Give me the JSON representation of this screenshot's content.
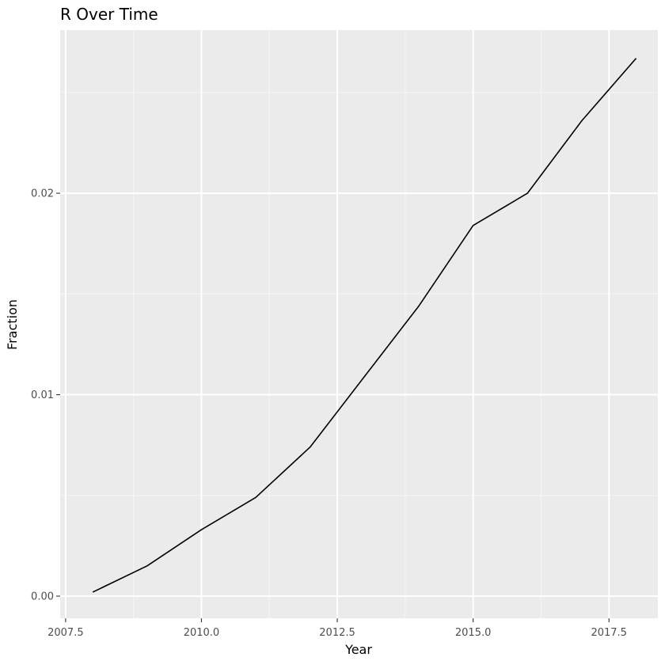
{
  "chart_data": {
    "type": "line",
    "title": "R Over Time",
    "xlabel": "Year",
    "ylabel": "Fraction",
    "xlim": [
      2007.4,
      2018.4
    ],
    "ylim": [
      -0.0011,
      0.0281
    ],
    "x_ticks": [
      2007.5,
      2010.0,
      2012.5,
      2015.0,
      2017.5
    ],
    "x_tick_labels": [
      "2007.5",
      "2010.0",
      "2012.5",
      "2015.0",
      "2017.5"
    ],
    "y_ticks": [
      0.0,
      0.01,
      0.02
    ],
    "y_tick_labels": [
      "0.00",
      "0.01",
      "0.02"
    ],
    "grid": true,
    "legend": "none",
    "series": [
      {
        "x": [
          2008,
          2009,
          2010,
          2011,
          2012,
          2013,
          2014,
          2015,
          2016,
          2017,
          2018
        ],
        "values": [
          0.0002,
          0.0015,
          0.0033,
          0.0049,
          0.0074,
          0.0109,
          0.0144,
          0.0184,
          0.02,
          0.0236,
          0.0267
        ]
      }
    ]
  },
  "colors": {
    "panel_background": "#ebebeb",
    "grid_major": "#ffffff",
    "grid_minor": "#f5f5f5",
    "line": "#000000",
    "tick_text": "#4d4d4d",
    "tick_mark": "#333333"
  }
}
